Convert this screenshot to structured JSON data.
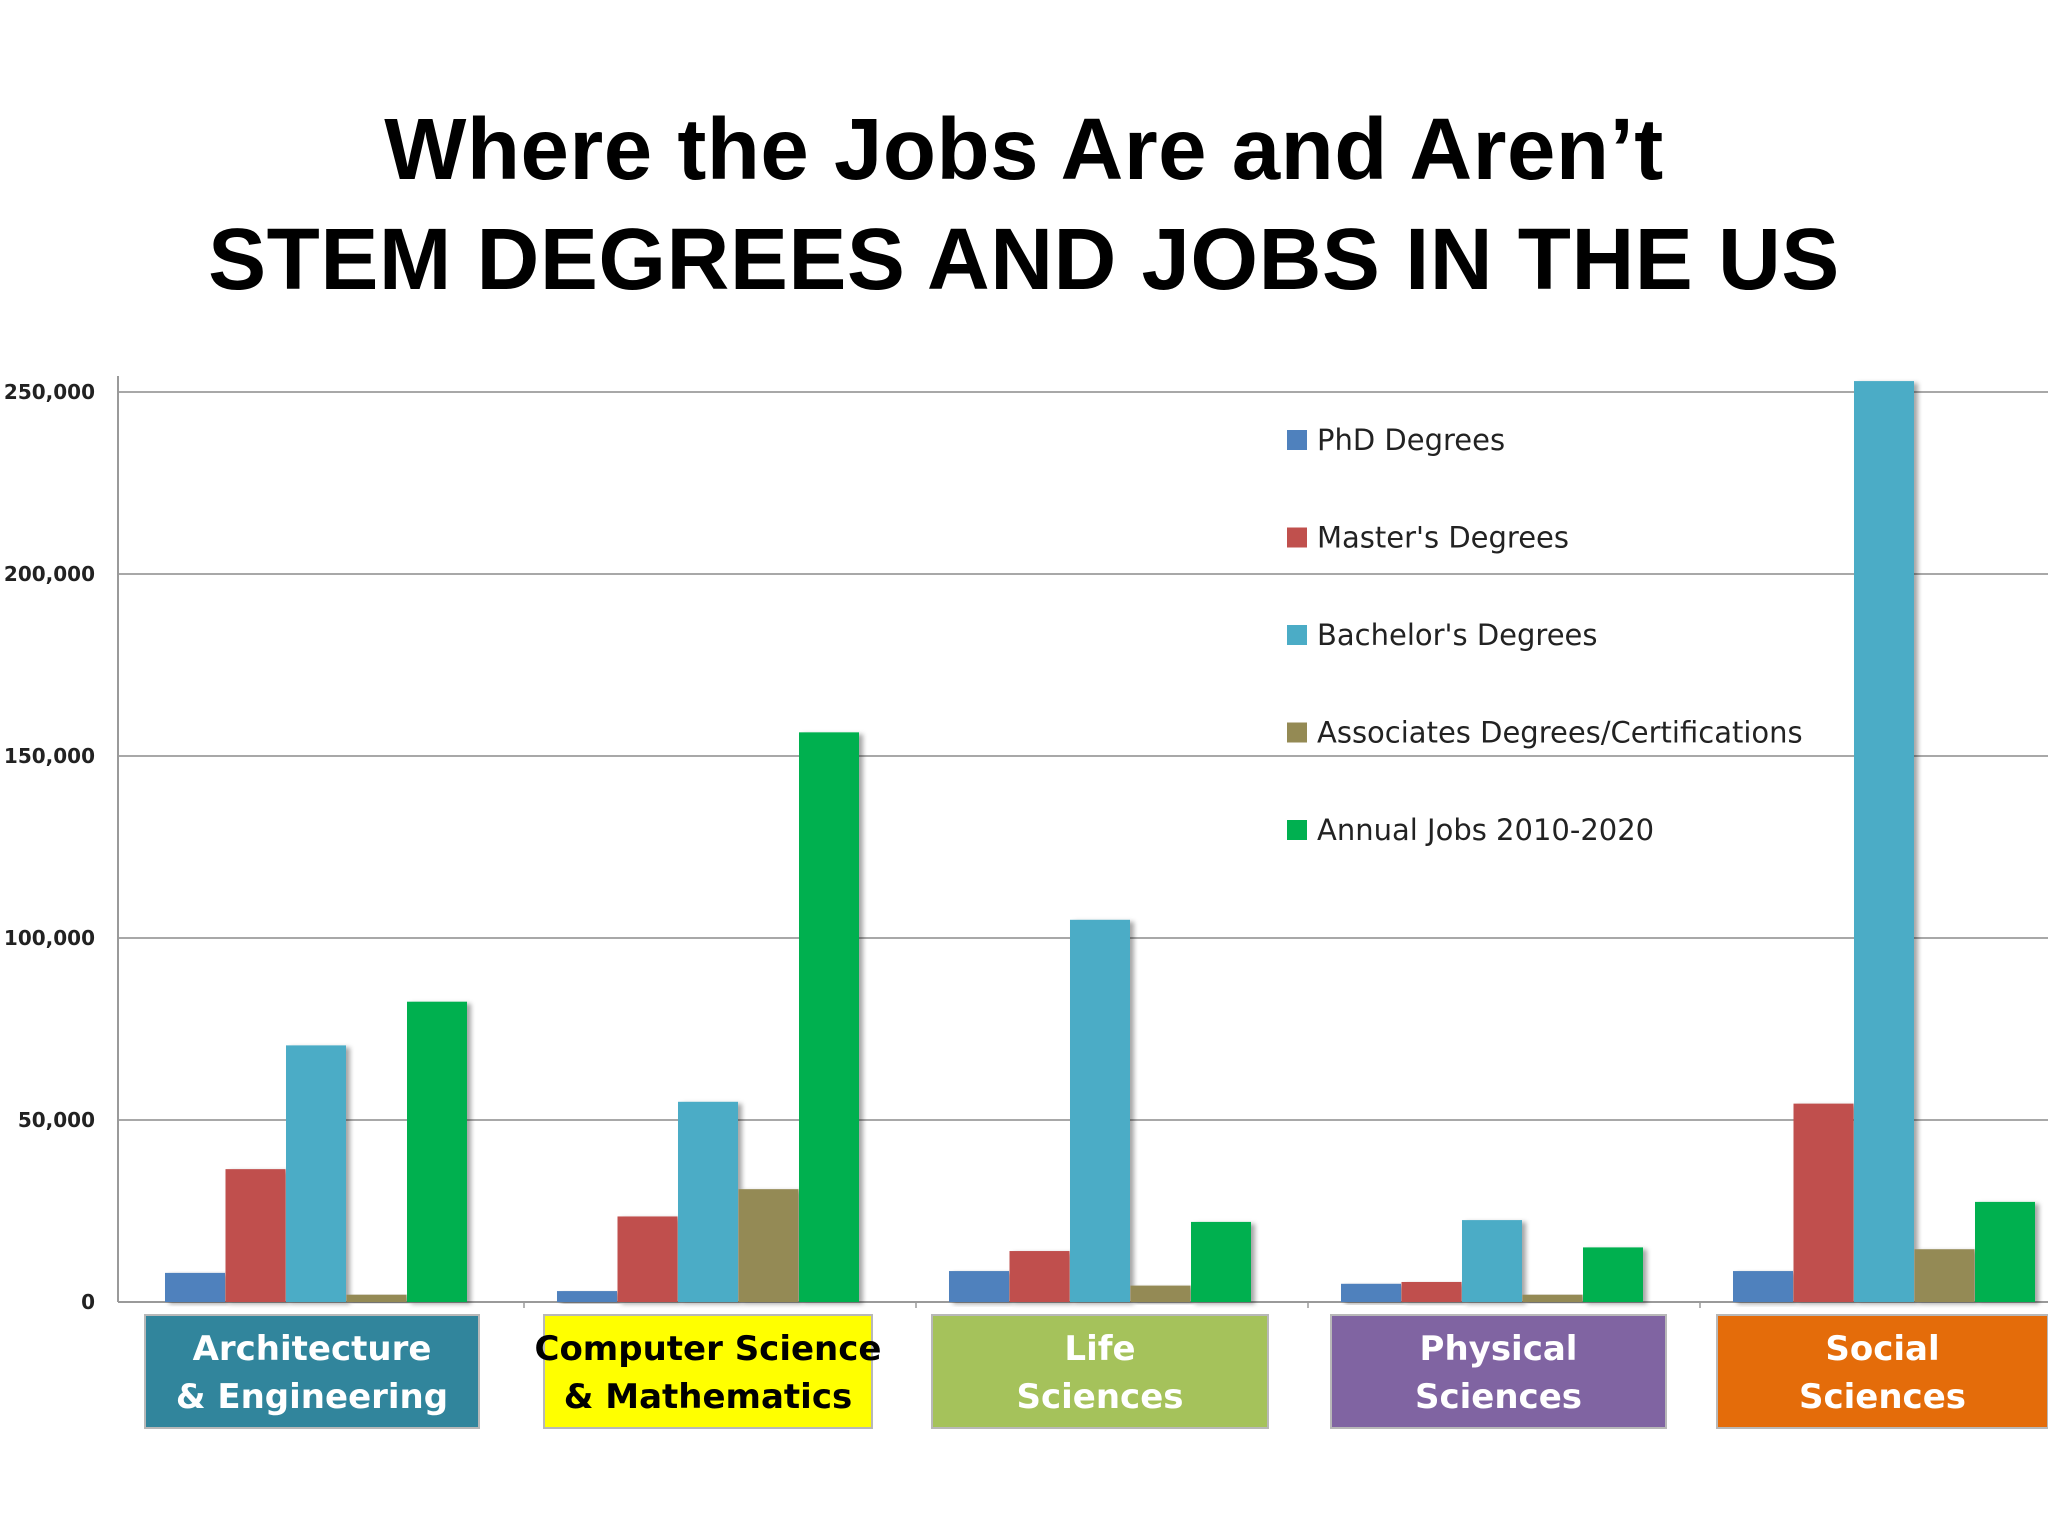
{
  "chart_data": {
    "type": "bar",
    "title": [
      "Where the Jobs Are and Aren’t",
      "STEM DEGREES AND JOBS IN THE US"
    ],
    "xlabel": "",
    "ylabel": "",
    "ylim": [
      0,
      250000
    ],
    "yticks": [
      0,
      50000,
      100000,
      150000,
      200000,
      250000
    ],
    "ytick_labels": [
      "0",
      "50,000",
      "100,000",
      "150,000",
      "200,000",
      "250,000"
    ],
    "grid": true,
    "legend_position": "top-right",
    "categories": [
      {
        "lines": [
          "Architecture",
          "& Engineering"
        ],
        "box_color": "#31859c",
        "text_color": "#ffffff"
      },
      {
        "lines": [
          "Computer Science",
          "& Mathematics"
        ],
        "box_color": "#ffff00",
        "text_color": "#000000"
      },
      {
        "lines": [
          "Life",
          "Sciences"
        ],
        "box_color": "#a5c25b",
        "text_color": "#ffffff"
      },
      {
        "lines": [
          "Physical",
          "Sciences"
        ],
        "box_color": "#8064a2",
        "text_color": "#ffffff"
      },
      {
        "lines": [
          "Social",
          "Sciences"
        ],
        "box_color": "#e46c0a",
        "text_color": "#ffffff"
      }
    ],
    "series": [
      {
        "name": "PhD Degrees",
        "color": "#4f81bd",
        "values": [
          8000,
          3000,
          8500,
          5000,
          8500
        ]
      },
      {
        "name": "Master's Degrees",
        "color": "#c0504d",
        "values": [
          36500,
          23500,
          14000,
          5500,
          54500
        ]
      },
      {
        "name": "Bachelor's Degrees",
        "color": "#4bacc6",
        "values": [
          70500,
          55000,
          105000,
          22500,
          253000
        ]
      },
      {
        "name": "Associates Degrees/Certifications",
        "color": "#948a54",
        "values": [
          2000,
          31000,
          4500,
          2000,
          14500
        ]
      },
      {
        "name": "Annual Jobs 2010-2020",
        "color": "#00b050",
        "values": [
          82500,
          156500,
          22000,
          15000,
          27500
        ]
      }
    ]
  }
}
